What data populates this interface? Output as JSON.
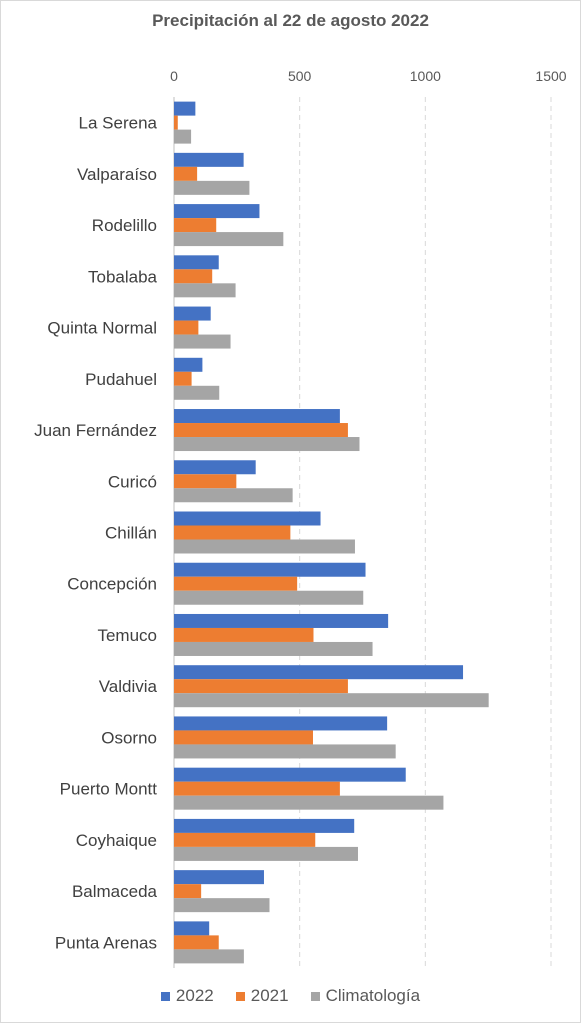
{
  "chart_data": {
    "type": "bar",
    "orientation": "horizontal",
    "title": "Precipitación al 22 de agosto 2022",
    "xlabel": "",
    "ylabel": "",
    "xlim": [
      0,
      1500
    ],
    "x_ticks": [
      0,
      500,
      1000,
      1500
    ],
    "grid": "vertical-dashed",
    "legend_position": "bottom",
    "categories": [
      "La Serena",
      "Valparaíso",
      "Rodelillo",
      "Tobalaba",
      "Quinta Normal",
      "Pudahuel",
      "Juan Fernández",
      "Curicó",
      "Chillán",
      "Concepción",
      "Temuco",
      "Valdivia",
      "Osorno",
      "Puerto Montt",
      "Coyhaique",
      "Balmaceda",
      "Punta Arenas"
    ],
    "series": [
      {
        "name": "2022",
        "color": "#4472c4",
        "values": [
          85,
          277,
          340,
          178,
          146,
          113,
          660,
          325,
          583,
          762,
          852,
          1150,
          848,
          922,
          717,
          358,
          140
        ]
      },
      {
        "name": "2021",
        "color": "#ed7d31",
        "values": [
          15,
          92,
          168,
          152,
          97,
          70,
          692,
          248,
          463,
          490,
          555,
          692,
          553,
          660,
          562,
          108,
          178
        ]
      },
      {
        "name": "Climatología",
        "color": "#a5a5a5",
        "values": [
          68,
          300,
          435,
          245,
          225,
          180,
          738,
          472,
          720,
          753,
          790,
          1252,
          882,
          1072,
          732,
          380,
          278
        ]
      }
    ]
  }
}
